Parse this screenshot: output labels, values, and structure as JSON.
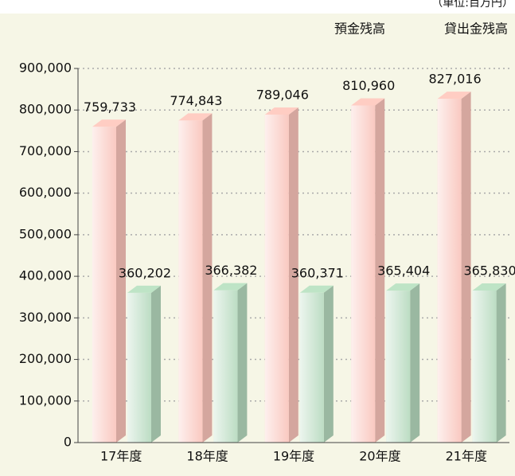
{
  "chart_data": {
    "type": "bar3d",
    "unit_note": "（単位:百万円）",
    "categories": [
      "17年度",
      "18年度",
      "19年度",
      "20年度",
      "21年度"
    ],
    "series": [
      {
        "name": "預金残高",
        "color": "#f9c3ba",
        "values": [
          759733,
          774843,
          789046,
          810960,
          827016
        ],
        "value_labels": [
          "759,733",
          "774,843",
          "789,046",
          "810,960",
          "827,016"
        ]
      },
      {
        "name": "貸出金残高",
        "color": "#b5d9bd",
        "values": [
          360202,
          366382,
          360371,
          365404,
          365830
        ],
        "value_labels": [
          "360,202",
          "366,382",
          "360,371",
          "365,404",
          "365,830"
        ]
      }
    ],
    "ylim": [
      0,
      900000
    ],
    "yticks": [
      0,
      {
        "value": 100000,
        "label": "100,000"
      },
      {
        "value": 200000,
        "label": "200,000"
      },
      {
        "value": 300000,
        "label": "300,000"
      },
      {
        "value": 400000,
        "label": "400,000"
      },
      {
        "value": 500000,
        "label": "500,000"
      },
      {
        "value": 600000,
        "label": "600,000"
      },
      {
        "value": 700000,
        "label": "700,000"
      },
      {
        "value": 800000,
        "label": "800,000"
      },
      {
        "value": 900000,
        "label": "900,000"
      }
    ],
    "grid": true
  }
}
